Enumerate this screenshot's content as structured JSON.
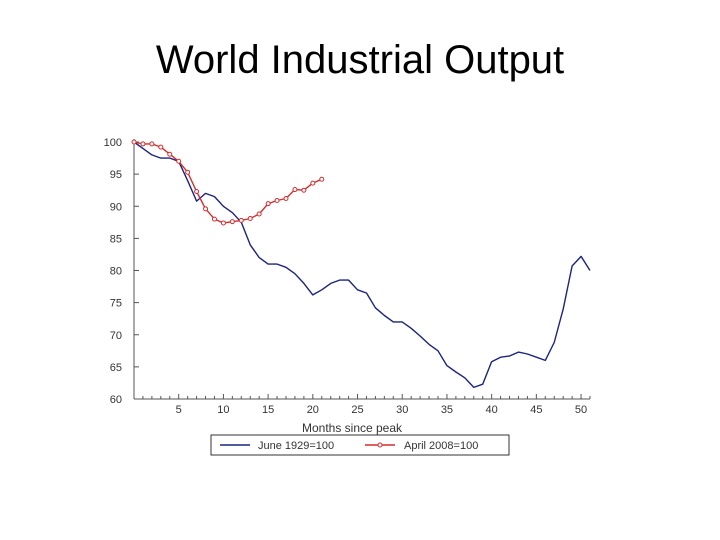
{
  "slide": {
    "title": "World Industrial Output"
  },
  "chart_data": {
    "type": "line",
    "title": "World Industrial Output",
    "xlabel": "Months since peak",
    "ylabel": "",
    "xlim": [
      0,
      51
    ],
    "ylim": [
      60,
      100
    ],
    "x_ticks": [
      5,
      10,
      15,
      20,
      25,
      30,
      35,
      40,
      45,
      50
    ],
    "y_ticks": [
      60,
      65,
      70,
      75,
      80,
      85,
      90,
      95,
      100
    ],
    "grid": false,
    "legend": "bottom",
    "series": [
      {
        "name": "June 1929=100",
        "color": "#1a237e",
        "markers": false,
        "x": [
          0,
          1,
          2,
          3,
          4,
          5,
          6,
          7,
          8,
          9,
          10,
          11,
          12,
          13,
          14,
          15,
          16,
          17,
          18,
          19,
          20,
          21,
          22,
          23,
          24,
          25,
          26,
          27,
          28,
          29,
          30,
          31,
          32,
          33,
          34,
          35,
          36,
          37,
          38,
          39,
          40,
          41,
          42,
          43,
          44,
          45,
          46,
          47,
          48,
          49,
          50,
          51
        ],
        "y": [
          100,
          99,
          98,
          97.5,
          97.5,
          97,
          94,
          90.8,
          92,
          91.5,
          90,
          89,
          87.5,
          84,
          82,
          81,
          81,
          80.5,
          79.5,
          78,
          76.2,
          77,
          78,
          78.5,
          78.5,
          77,
          76.5,
          74.2,
          73,
          72,
          72,
          71,
          69.8,
          68.5,
          67.5,
          65.2,
          64.2,
          63.3,
          61.8,
          62.3,
          65.8,
          66.5,
          66.7,
          67.3,
          67,
          66.5,
          66,
          68.8,
          74,
          80.7,
          82.2,
          80
        ]
      },
      {
        "name": "April 2008=100",
        "color": "#d32f2f",
        "markers": true,
        "x": [
          0,
          1,
          2,
          3,
          4,
          5,
          6,
          7,
          8,
          9,
          10,
          11,
          12,
          13,
          14,
          15,
          16,
          17,
          18,
          19,
          20,
          21
        ],
        "y": [
          100,
          99.7,
          99.7,
          99.2,
          98.1,
          97,
          95.3,
          92.3,
          89.6,
          88,
          87.4,
          87.6,
          87.8,
          88.1,
          88.8,
          90.4,
          90.9,
          91.2,
          92.6,
          92.5,
          93.6,
          94.2
        ]
      }
    ]
  }
}
